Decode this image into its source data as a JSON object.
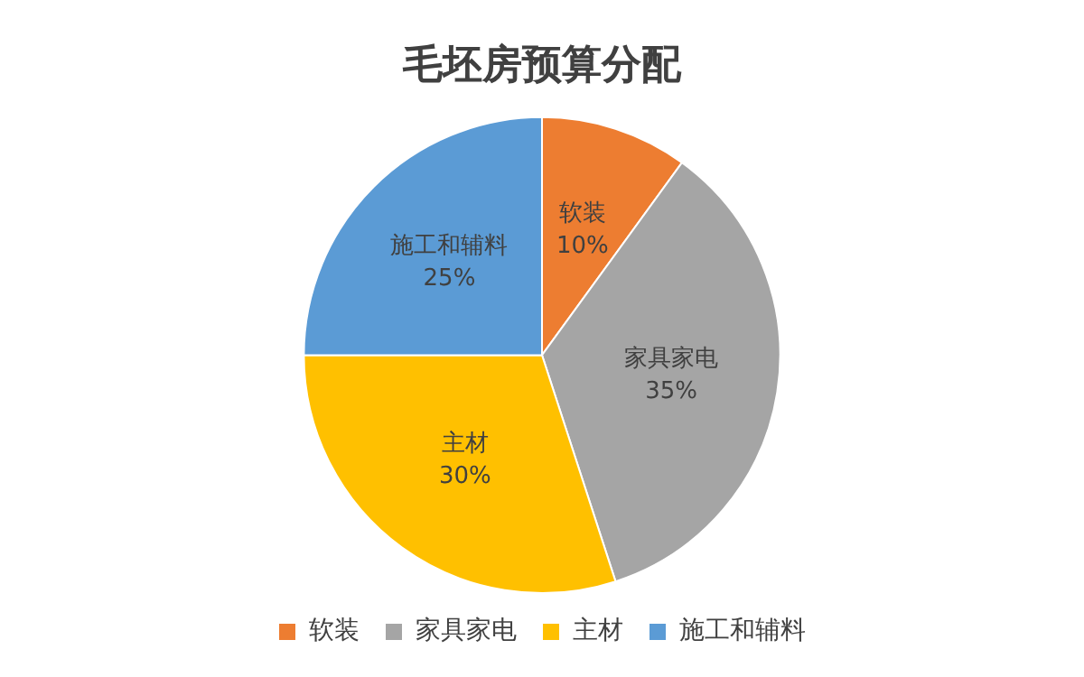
{
  "chart_data": {
    "type": "pie",
    "title": "毛坯房预算分配",
    "categories": [
      "软装",
      "家具家电",
      "主材",
      "施工和辅料"
    ],
    "values": [
      10,
      35,
      30,
      25
    ],
    "colors": [
      "#ed7d31",
      "#a5a5a5",
      "#ffc000",
      "#5b9bd5"
    ],
    "value_labels": [
      "10%",
      "35%",
      "30%",
      "25%"
    ],
    "legend": "bottom"
  }
}
